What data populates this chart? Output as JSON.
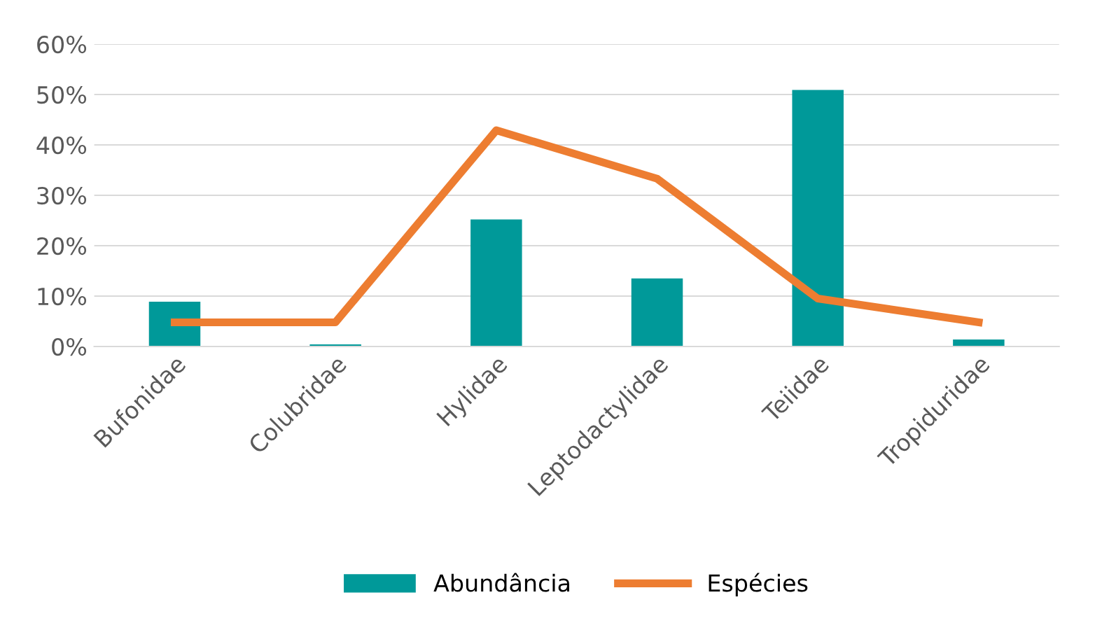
{
  "chart_data": {
    "type": "bar",
    "categories": [
      "Bufonidae",
      "Colubridae",
      "Hylidae",
      "Leptodactylidae",
      "Teiidae",
      "Tropiduridae"
    ],
    "series": [
      {
        "name": "Abundância",
        "color": "#009999",
        "values": [
          8.9,
          0.4,
          25.2,
          13.5,
          50.9,
          1.4
        ]
      },
      {
        "name": "Espécies",
        "type": "line",
        "color": "#ed7d31",
        "values": [
          4.8,
          4.8,
          42.9,
          33.3,
          9.5,
          4.8
        ]
      }
    ],
    "ylim": [
      0,
      60
    ],
    "yticks": [
      {
        "value": 0,
        "label": "0%"
      },
      {
        "value": 10,
        "label": "10%"
      },
      {
        "value": 20,
        "label": "20%"
      },
      {
        "value": 30,
        "label": "30%"
      },
      {
        "value": 40,
        "label": "40%"
      },
      {
        "value": 50,
        "label": "50%"
      },
      {
        "value": 60,
        "label": "60%"
      }
    ],
    "grid": "y",
    "legend": "bottom",
    "marker": "none",
    "line_style": "solid"
  }
}
